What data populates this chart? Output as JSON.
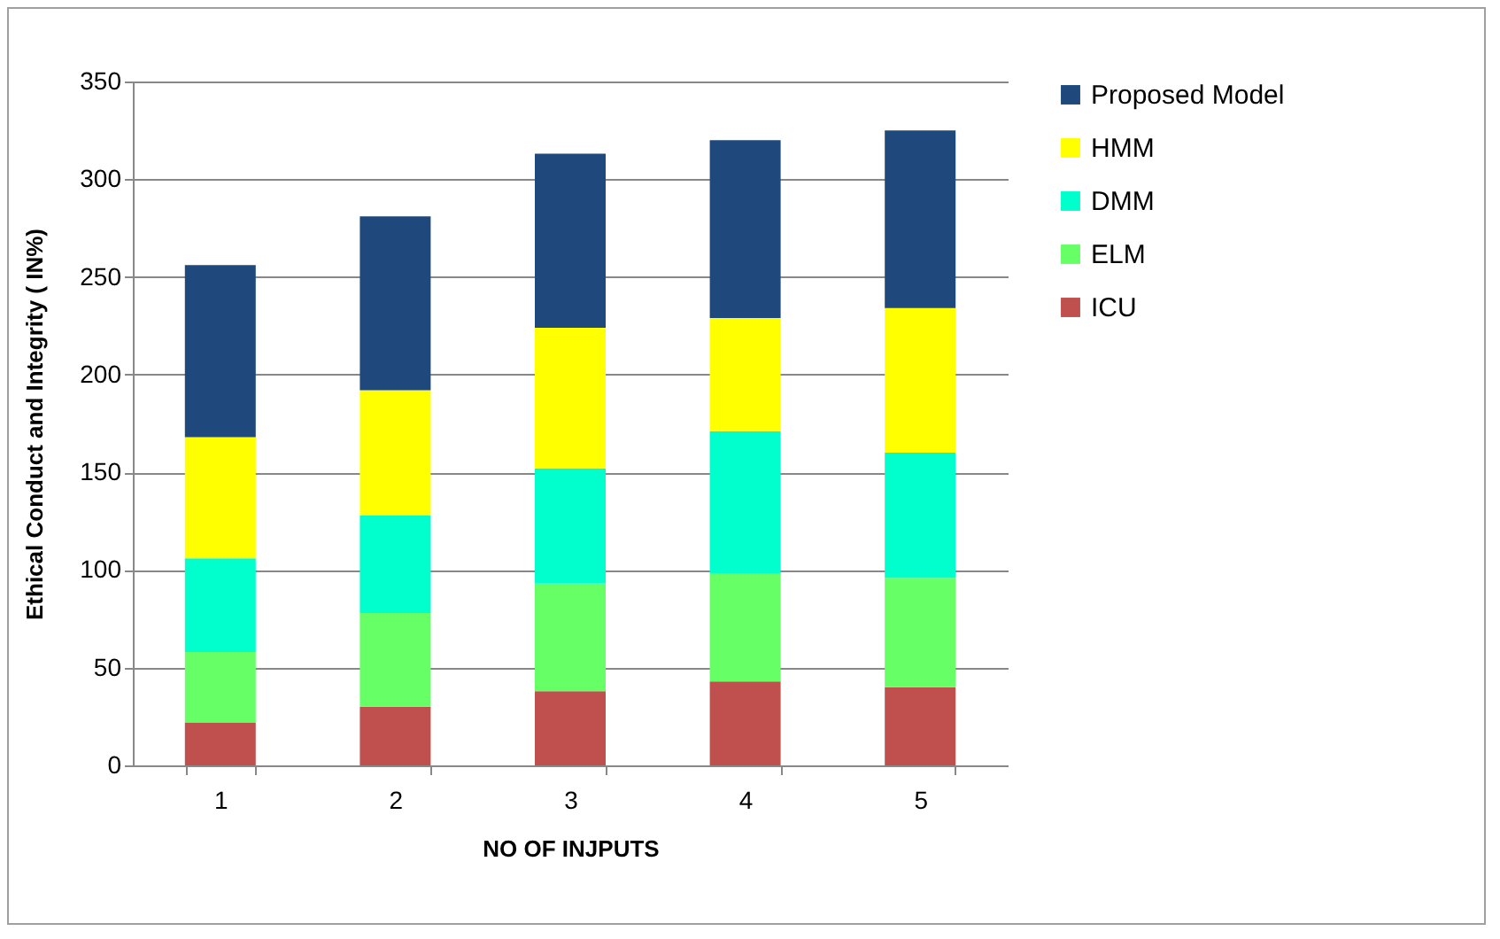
{
  "chart_data": {
    "type": "bar",
    "stacked": true,
    "xlabel": "NO OF INJPUTS",
    "ylabel": "Ethical Conduct and Integrity ( IN%)",
    "categories": [
      "1",
      "2",
      "3",
      "4",
      "5"
    ],
    "series": [
      {
        "name": "ICU",
        "color": "#c0504d",
        "values": [
          22,
          30,
          38,
          43,
          40
        ]
      },
      {
        "name": "ELM",
        "color": "#66ff66",
        "values": [
          36,
          48,
          55,
          55,
          56
        ]
      },
      {
        "name": "DMM",
        "color": "#00ffcc",
        "values": [
          48,
          50,
          59,
          73,
          64
        ]
      },
      {
        "name": "HMM",
        "color": "#ffff00",
        "values": [
          62,
          64,
          72,
          58,
          74
        ]
      },
      {
        "name": "Proposed Model",
        "color": "#1f497d",
        "values": [
          88,
          89,
          89,
          91,
          91
        ]
      }
    ],
    "ylim": [
      0,
      350
    ],
    "yticks": [
      0,
      50,
      100,
      150,
      200,
      250,
      300,
      350
    ],
    "grid": "y",
    "legend": "right"
  }
}
